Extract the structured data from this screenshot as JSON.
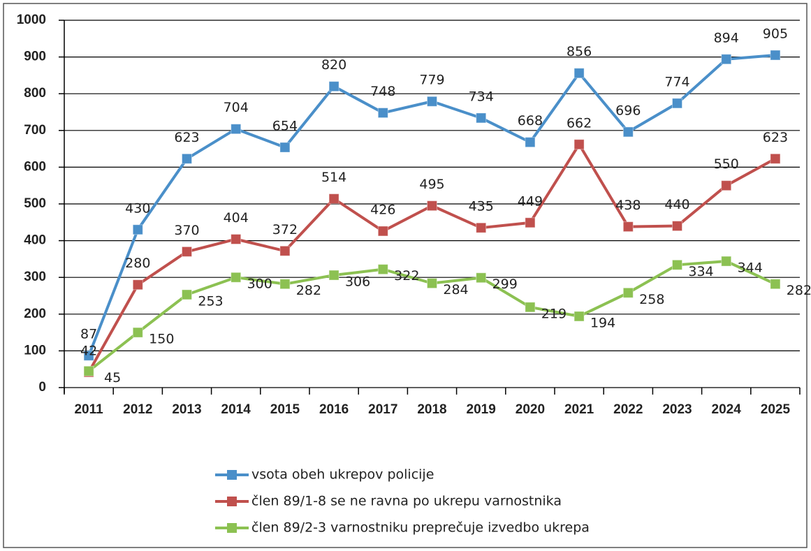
{
  "chart_data": {
    "type": "line",
    "categories": [
      "2011",
      "2012",
      "2013",
      "2014",
      "2015",
      "2016",
      "2017",
      "2018",
      "2019",
      "2020",
      "2021",
      "2022",
      "2023",
      "2024",
      "2025"
    ],
    "series": [
      {
        "name": "vsota obeh ukrepov policije",
        "color": "#4a8fc9",
        "values": [
          87,
          430,
          623,
          704,
          654,
          820,
          748,
          779,
          734,
          668,
          856,
          696,
          774,
          894,
          905
        ]
      },
      {
        "name": "člen 89/1-8 se ne ravna po ukrepu varnostnika",
        "color": "#c0504d",
        "values": [
          42,
          280,
          370,
          404,
          372,
          514,
          426,
          495,
          435,
          449,
          662,
          438,
          440,
          550,
          623
        ]
      },
      {
        "name": "člen 89/2-3 varnostniku preprečuje izvedbo ukrepa",
        "color": "#8cc152",
        "values": [
          45,
          150,
          253,
          300,
          282,
          306,
          322,
          284,
          299,
          219,
          194,
          258,
          334,
          344,
          282
        ]
      }
    ],
    "ylim": [
      0,
      1000
    ],
    "yticks": [
      0,
      100,
      200,
      300,
      400,
      500,
      600,
      700,
      800,
      900,
      1000
    ],
    "grid": true,
    "legend": "bottom"
  }
}
